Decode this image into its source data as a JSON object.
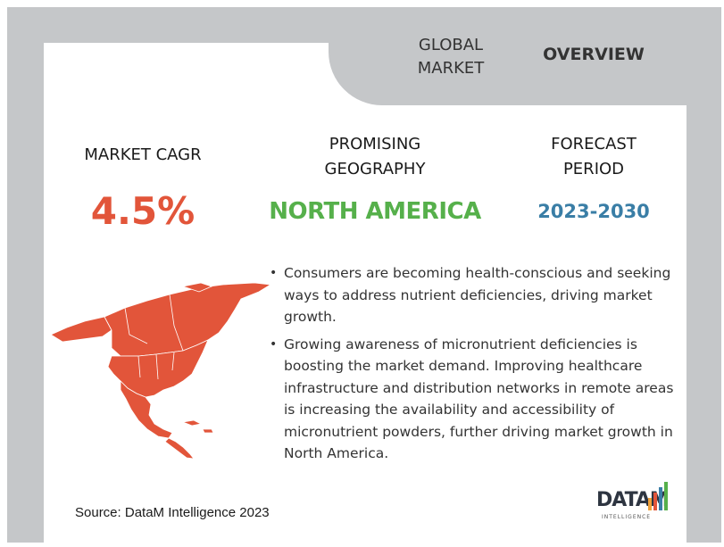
{
  "header": {
    "global_market": "GLOBAL\nMARKET",
    "overview": "OVERVIEW"
  },
  "metrics": [
    {
      "label": "MARKET CAGR",
      "value": "4.5%",
      "color": "#e2553a"
    },
    {
      "label": "PROMISING GEOGRAPHY",
      "value": "NORTH AMERICA",
      "color": "#56b04b"
    },
    {
      "label": "FORECAST PERIOD",
      "value": "2023-2030",
      "color": "#3a7ea6"
    }
  ],
  "map": {
    "region": "North America",
    "icon": "north-america-map-icon",
    "color": "#e2553a"
  },
  "bullets": [
    "Consumers are becoming health-conscious and seeking ways to address nutrient deficiencies, driving market growth.",
    "Growing awareness of micronutrient deficiencies is boosting the market demand. Improving healthcare infrastructure and distribution networks in remote areas is increasing the availability and accessibility of micronutrient powders, further driving market growth in North America."
  ],
  "source": "Source: DataM Intelligence 2023",
  "logo": {
    "word": "DATAM",
    "sub": "INTELLIGENCE"
  }
}
